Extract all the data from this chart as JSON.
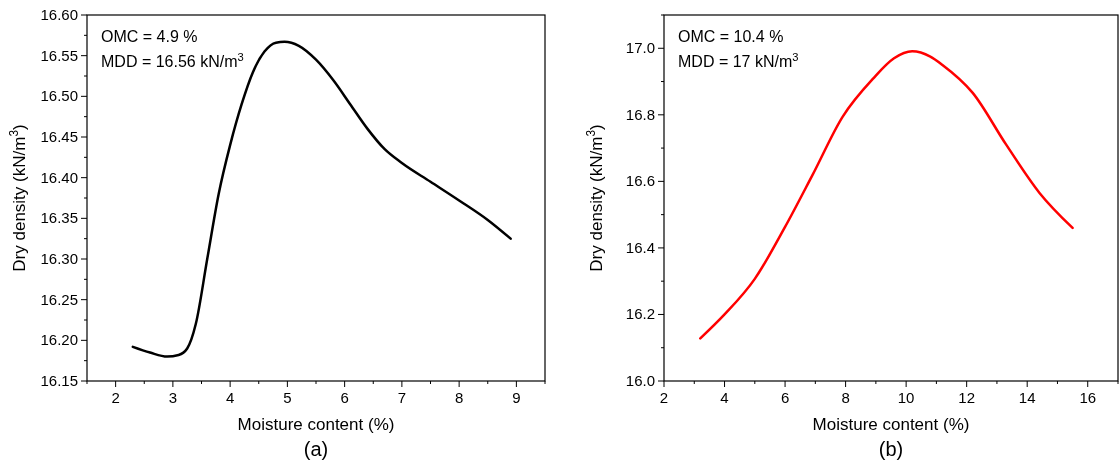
{
  "chart_data": [
    {
      "type": "line",
      "xlabel": "Moisture content (%)",
      "ylabel": "Dry density (kN/m$^{3}$)",
      "annotations": [
        "OMC = 4.9 %",
        "MDD = 16.56 kN/m$^{3}$",
        "(a)"
      ],
      "xlim": [
        1.5,
        9.5
      ],
      "ylim": [
        16.15,
        16.6
      ],
      "xticks": [
        {
          "value": 1.5,
          "label": null
        },
        2,
        {
          "value": 2.5,
          "label": null
        },
        3,
        {
          "value": 3.5,
          "label": null
        },
        4,
        {
          "value": 4.5,
          "label": null
        },
        5,
        {
          "value": 5.5,
          "label": null
        },
        6,
        {
          "value": 6.5,
          "label": null
        },
        7,
        {
          "value": 7.5,
          "label": null
        },
        8,
        {
          "value": 8.5,
          "label": null
        },
        9,
        {
          "value": 9.5,
          "label": null
        }
      ],
      "yticks": [
        {
          "value": 16.15,
          "label": "16.15"
        },
        {
          "value": 16.175,
          "label": null
        },
        {
          "value": 16.2,
          "label": "16.20"
        },
        {
          "value": 16.225,
          "label": null
        },
        {
          "value": 16.25,
          "label": "16.25"
        },
        {
          "value": 16.275,
          "label": null
        },
        {
          "value": 16.3,
          "label": "16.30"
        },
        {
          "value": 16.325,
          "label": null
        },
        {
          "value": 16.35,
          "label": "16.35"
        },
        {
          "value": 16.375,
          "label": null
        },
        {
          "value": 16.4,
          "label": "16.40"
        },
        {
          "value": 16.425,
          "label": null
        },
        {
          "value": 16.45,
          "label": "16.45"
        },
        {
          "value": 16.475,
          "label": null
        },
        {
          "value": 16.5,
          "label": "16.50"
        },
        {
          "value": 16.525,
          "label": null
        },
        {
          "value": 16.55,
          "label": "16.55"
        },
        {
          "value": 16.575,
          "label": null
        },
        {
          "value": 16.6,
          "label": "16.60"
        }
      ],
      "grid": false,
      "marker": "none",
      "line_style": "solid",
      "series": [
        {
          "color": "#000000",
          "x": [
            2.3,
            2.6,
            2.9,
            3.1,
            3.25,
            3.4,
            3.6,
            3.8,
            4.0,
            4.2,
            4.4,
            4.6,
            4.8,
            4.95,
            5.2,
            5.5,
            5.8,
            6.1,
            6.4,
            6.7,
            7.0,
            7.5,
            8.0,
            8.5,
            8.9
          ],
          "values": [
            16.192,
            16.185,
            16.18,
            16.182,
            16.19,
            16.22,
            16.3,
            16.38,
            16.44,
            16.49,
            16.53,
            16.555,
            16.566,
            16.567,
            16.562,
            16.545,
            16.52,
            16.49,
            16.46,
            16.435,
            16.418,
            16.395,
            16.372,
            16.348,
            16.325
          ]
        }
      ]
    },
    {
      "type": "line",
      "xlabel": "Moisture content (%)",
      "ylabel": "Dry density (kN/m$^{3}$)",
      "annotations": [
        "OMC = 10.4 %",
        "MDD = 17 kN/m$^{3}$",
        "(b)"
      ],
      "xlim": [
        2,
        17
      ],
      "ylim": [
        16.0,
        17.1
      ],
      "xticks": [
        2,
        {
          "value": 3,
          "label": null
        },
        4,
        {
          "value": 5,
          "label": null
        },
        6,
        {
          "value": 7,
          "label": null
        },
        8,
        {
          "value": 9,
          "label": null
        },
        10,
        {
          "value": 11,
          "label": null
        },
        12,
        {
          "value": 13,
          "label": null
        },
        14,
        {
          "value": 15,
          "label": null
        },
        16,
        {
          "value": 17,
          "label": null
        }
      ],
      "yticks": [
        {
          "value": 16.0,
          "label": "16.0"
        },
        {
          "value": 16.1,
          "label": null
        },
        16.2,
        {
          "value": 16.3,
          "label": null
        },
        16.4,
        {
          "value": 16.5,
          "label": null
        },
        16.6,
        {
          "value": 16.7,
          "label": null
        },
        16.8,
        {
          "value": 16.9,
          "label": null
        },
        {
          "value": 17.0,
          "label": "17.0"
        },
        {
          "value": 17.1,
          "label": null
        }
      ],
      "grid": false,
      "marker": "none",
      "line_style": "solid",
      "series": [
        {
          "color": "#ff0000",
          "x": [
            3.2,
            4.0,
            5.0,
            6.0,
            6.9,
            7.9,
            8.9,
            9.6,
            10.2,
            10.8,
            11.2,
            12.2,
            13.3,
            14.4,
            15.5
          ],
          "values": [
            16.128,
            16.2,
            16.307,
            16.463,
            16.618,
            16.794,
            16.908,
            16.97,
            16.991,
            16.975,
            16.95,
            16.866,
            16.711,
            16.566,
            16.46
          ]
        }
      ]
    }
  ]
}
